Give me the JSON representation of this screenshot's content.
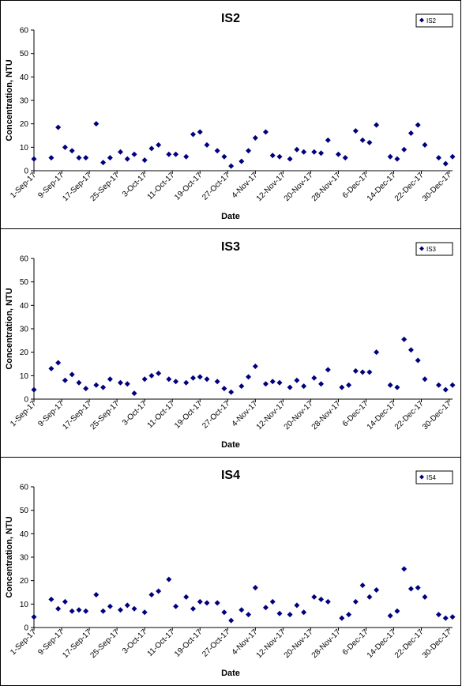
{
  "chart_data": [
    {
      "type": "scatter",
      "title": "IS2",
      "xlabel": "Date",
      "ylabel": "Concentration, NTU",
      "ylim": [
        0,
        60
      ],
      "yticks": [
        "0",
        "10",
        "20",
        "30",
        "40",
        "50",
        "60"
      ],
      "xlim": [
        "2017-09-01",
        "2017-12-31"
      ],
      "xticks": [
        "1-Sep-17",
        "9-Sep-17",
        "17-Sep-17",
        "25-Sep-17",
        "3-Oct-17",
        "11-Oct-17",
        "19-Oct-17",
        "27-Oct-17",
        "4-Nov-17",
        "12-Nov-17",
        "20-Nov-17",
        "28-Nov-17",
        "6-Dec-17",
        "14-Dec-17",
        "22-Dec-17",
        "30-Dec-17"
      ],
      "legend": "top-right",
      "grid": false,
      "marker_color": "#00007f",
      "series": [
        {
          "name": "IS2",
          "points": [
            [
              "2017-09-01",
              5
            ],
            [
              "2017-09-06",
              5.5
            ],
            [
              "2017-09-08",
              18.5
            ],
            [
              "2017-09-10",
              10
            ],
            [
              "2017-09-12",
              8.5
            ],
            [
              "2017-09-14",
              5.5
            ],
            [
              "2017-09-16",
              5.5
            ],
            [
              "2017-09-19",
              20
            ],
            [
              "2017-09-21",
              3.5
            ],
            [
              "2017-09-23",
              5.5
            ],
            [
              "2017-09-26",
              8
            ],
            [
              "2017-09-28",
              5
            ],
            [
              "2017-09-30",
              7
            ],
            [
              "2017-10-03",
              4.5
            ],
            [
              "2017-10-05",
              9.5
            ],
            [
              "2017-10-07",
              11
            ],
            [
              "2017-10-10",
              7
            ],
            [
              "2017-10-12",
              7
            ],
            [
              "2017-10-15",
              6
            ],
            [
              "2017-10-17",
              15.5
            ],
            [
              "2017-10-19",
              16.5
            ],
            [
              "2017-10-21",
              11
            ],
            [
              "2017-10-24",
              8.5
            ],
            [
              "2017-10-26",
              6
            ],
            [
              "2017-10-28",
              2
            ],
            [
              "2017-10-31",
              4
            ],
            [
              "2017-11-02",
              8.5
            ],
            [
              "2017-11-04",
              14
            ],
            [
              "2017-11-07",
              16.5
            ],
            [
              "2017-11-09",
              6.5
            ],
            [
              "2017-11-11",
              6
            ],
            [
              "2017-11-14",
              5
            ],
            [
              "2017-11-16",
              9
            ],
            [
              "2017-11-18",
              8
            ],
            [
              "2017-11-21",
              8
            ],
            [
              "2017-11-23",
              7.5
            ],
            [
              "2017-11-25",
              13
            ],
            [
              "2017-11-28",
              7
            ],
            [
              "2017-11-30",
              5.5
            ],
            [
              "2017-12-03",
              17
            ],
            [
              "2017-12-05",
              13
            ],
            [
              "2017-12-07",
              12
            ],
            [
              "2017-12-09",
              19.5
            ],
            [
              "2017-12-13",
              6
            ],
            [
              "2017-12-15",
              5
            ],
            [
              "2017-12-17",
              9
            ],
            [
              "2017-12-19",
              16
            ],
            [
              "2017-12-21",
              19.5
            ],
            [
              "2017-12-23",
              11
            ],
            [
              "2017-12-27",
              5.5
            ],
            [
              "2017-12-29",
              3
            ],
            [
              "2017-12-31",
              6
            ]
          ]
        }
      ]
    },
    {
      "type": "scatter",
      "title": "IS3",
      "xlabel": "Date",
      "ylabel": "Concentration, NTU",
      "ylim": [
        0,
        60
      ],
      "yticks": [
        "0",
        "10",
        "20",
        "30",
        "40",
        "50",
        "60"
      ],
      "xlim": [
        "2017-09-01",
        "2017-12-31"
      ],
      "xticks": [
        "1-Sep-17",
        "9-Sep-17",
        "17-Sep-17",
        "25-Sep-17",
        "3-Oct-17",
        "11-Oct-17",
        "19-Oct-17",
        "27-Oct-17",
        "4-Nov-17",
        "12-Nov-17",
        "20-Nov-17",
        "28-Nov-17",
        "6-Dec-17",
        "14-Dec-17",
        "22-Dec-17",
        "30-Dec-17"
      ],
      "legend": "top-right",
      "grid": false,
      "marker_color": "#00007f",
      "series": [
        {
          "name": "IS3",
          "points": [
            [
              "2017-09-01",
              4
            ],
            [
              "2017-09-06",
              13
            ],
            [
              "2017-09-08",
              15.5
            ],
            [
              "2017-09-10",
              8
            ],
            [
              "2017-09-12",
              10.5
            ],
            [
              "2017-09-14",
              7
            ],
            [
              "2017-09-16",
              4.5
            ],
            [
              "2017-09-19",
              6
            ],
            [
              "2017-09-21",
              5
            ],
            [
              "2017-09-23",
              8.5
            ],
            [
              "2017-09-26",
              7
            ],
            [
              "2017-09-28",
              6.5
            ],
            [
              "2017-09-30",
              2.5
            ],
            [
              "2017-10-03",
              8.5
            ],
            [
              "2017-10-05",
              10
            ],
            [
              "2017-10-07",
              11
            ],
            [
              "2017-10-10",
              8.5
            ],
            [
              "2017-10-12",
              7.5
            ],
            [
              "2017-10-15",
              7
            ],
            [
              "2017-10-17",
              9
            ],
            [
              "2017-10-19",
              9.5
            ],
            [
              "2017-10-21",
              8.5
            ],
            [
              "2017-10-24",
              7.5
            ],
            [
              "2017-10-26",
              4.5
            ],
            [
              "2017-10-28",
              3
            ],
            [
              "2017-10-31",
              5.5
            ],
            [
              "2017-11-02",
              9.5
            ],
            [
              "2017-11-04",
              14
            ],
            [
              "2017-11-07",
              6.5
            ],
            [
              "2017-11-09",
              7.5
            ],
            [
              "2017-11-11",
              7
            ],
            [
              "2017-11-14",
              5
            ],
            [
              "2017-11-16",
              8
            ],
            [
              "2017-11-18",
              5.5
            ],
            [
              "2017-11-21",
              9
            ],
            [
              "2017-11-23",
              6.5
            ],
            [
              "2017-11-25",
              12.5
            ],
            [
              "2017-11-29",
              5
            ],
            [
              "2017-12-01",
              6
            ],
            [
              "2017-12-03",
              12
            ],
            [
              "2017-12-05",
              11.5
            ],
            [
              "2017-12-07",
              11.5
            ],
            [
              "2017-12-09",
              20
            ],
            [
              "2017-12-13",
              6
            ],
            [
              "2017-12-15",
              5
            ],
            [
              "2017-12-17",
              25.5
            ],
            [
              "2017-12-19",
              21
            ],
            [
              "2017-12-21",
              16.5
            ],
            [
              "2017-12-23",
              8.5
            ],
            [
              "2017-12-27",
              6
            ],
            [
              "2017-12-29",
              4
            ],
            [
              "2017-12-31",
              6
            ]
          ]
        }
      ]
    },
    {
      "type": "scatter",
      "title": "IS4",
      "xlabel": "Date",
      "ylabel": "Concentration, NTU",
      "ylim": [
        0,
        60
      ],
      "yticks": [
        "0",
        "10",
        "20",
        "30",
        "40",
        "50",
        "60"
      ],
      "xlim": [
        "2017-09-01",
        "2017-12-31"
      ],
      "xticks": [
        "1-Sep-17",
        "9-Sep-17",
        "17-Sep-17",
        "25-Sep-17",
        "3-Oct-17",
        "11-Oct-17",
        "19-Oct-17",
        "27-Oct-17",
        "4-Nov-17",
        "12-Nov-17",
        "20-Nov-17",
        "28-Nov-17",
        "6-Dec-17",
        "14-Dec-17",
        "22-Dec-17",
        "30-Dec-17"
      ],
      "legend": "top-right",
      "grid": false,
      "marker_color": "#00007f",
      "series": [
        {
          "name": "IS4",
          "points": [
            [
              "2017-09-01",
              4.5
            ],
            [
              "2017-09-06",
              12
            ],
            [
              "2017-09-08",
              8
            ],
            [
              "2017-09-10",
              11
            ],
            [
              "2017-09-12",
              7
            ],
            [
              "2017-09-14",
              7.5
            ],
            [
              "2017-09-16",
              7
            ],
            [
              "2017-09-19",
              14
            ],
            [
              "2017-09-21",
              7
            ],
            [
              "2017-09-23",
              9
            ],
            [
              "2017-09-26",
              7.5
            ],
            [
              "2017-09-28",
              9.5
            ],
            [
              "2017-09-30",
              8
            ],
            [
              "2017-10-03",
              6.5
            ],
            [
              "2017-10-05",
              14
            ],
            [
              "2017-10-07",
              15.5
            ],
            [
              "2017-10-10",
              20.5
            ],
            [
              "2017-10-12",
              9
            ],
            [
              "2017-10-15",
              13
            ],
            [
              "2017-10-17",
              8
            ],
            [
              "2017-10-19",
              11
            ],
            [
              "2017-10-21",
              10.5
            ],
            [
              "2017-10-24",
              10.5
            ],
            [
              "2017-10-26",
              6.5
            ],
            [
              "2017-10-28",
              3
            ],
            [
              "2017-10-31",
              7.5
            ],
            [
              "2017-11-02",
              5.5
            ],
            [
              "2017-11-04",
              17
            ],
            [
              "2017-11-07",
              8.5
            ],
            [
              "2017-11-09",
              11
            ],
            [
              "2017-11-11",
              6
            ],
            [
              "2017-11-14",
              5.5
            ],
            [
              "2017-11-16",
              9.5
            ],
            [
              "2017-11-18",
              6.5
            ],
            [
              "2017-11-21",
              13
            ],
            [
              "2017-11-23",
              12
            ],
            [
              "2017-11-25",
              11
            ],
            [
              "2017-11-29",
              4
            ],
            [
              "2017-12-01",
              5.5
            ],
            [
              "2017-12-03",
              11
            ],
            [
              "2017-12-05",
              18
            ],
            [
              "2017-12-07",
              13
            ],
            [
              "2017-12-09",
              16
            ],
            [
              "2017-12-13",
              5
            ],
            [
              "2017-12-15",
              7
            ],
            [
              "2017-12-17",
              25
            ],
            [
              "2017-12-19",
              16.5
            ],
            [
              "2017-12-21",
              17
            ],
            [
              "2017-12-23",
              13
            ],
            [
              "2017-12-27",
              5.5
            ],
            [
              "2017-12-29",
              4
            ],
            [
              "2017-12-31",
              4.5
            ]
          ]
        }
      ]
    }
  ]
}
